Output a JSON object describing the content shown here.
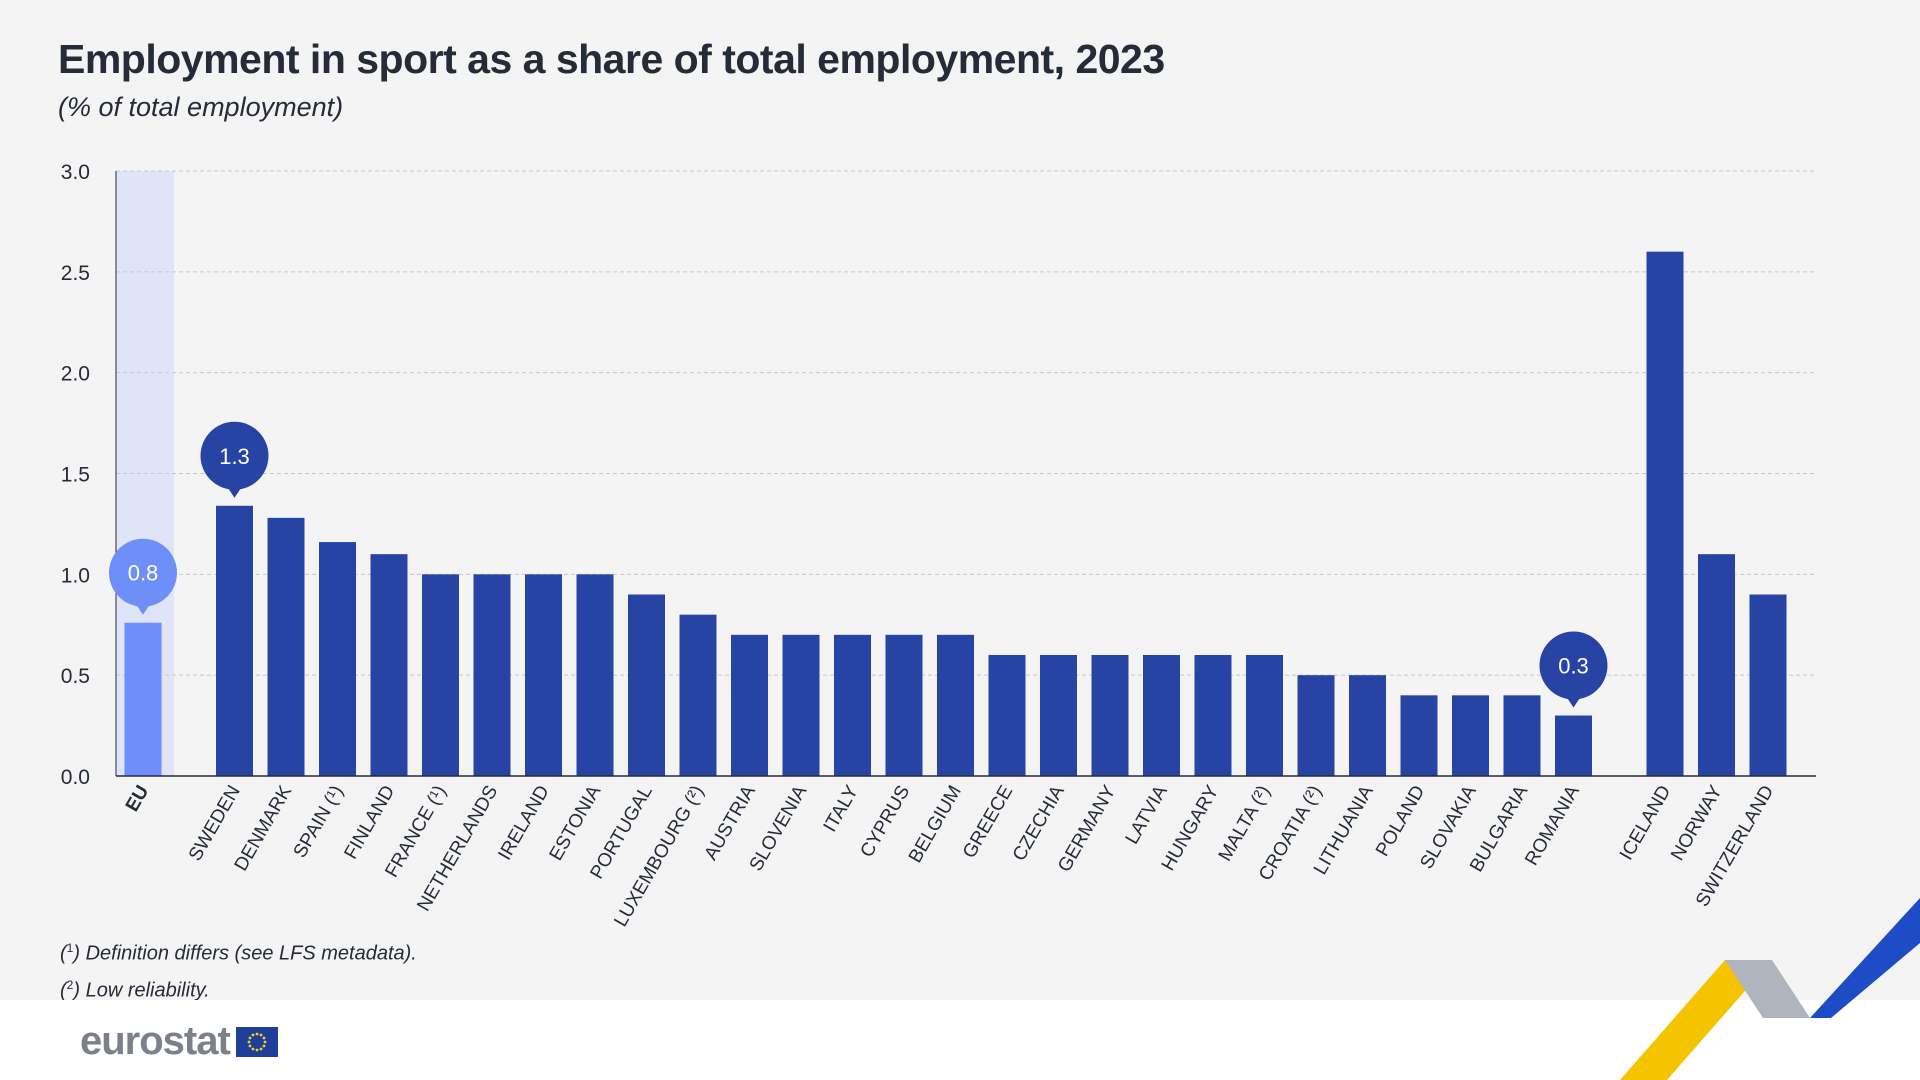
{
  "header": {
    "title": "Employment in sport as a share of total employment, 2023",
    "subtitle": "(% of total employment)"
  },
  "footnotes": {
    "note1_mark": "1",
    "note1_text": "Definition differs (see LFS metadata).",
    "note2_mark": "2",
    "note2_text": "Low reliability."
  },
  "branding": {
    "logo_text": "eurostat"
  },
  "colors": {
    "bar": "#2743a4",
    "eu_bar": "#6e8ff8",
    "eu_highlight": "#dfe4f8",
    "grid": "#c8c8c8",
    "text": "#262b38",
    "callout_dark": "#2743a4",
    "callout_light": "#6e8ff8"
  },
  "chart_data": {
    "type": "bar",
    "title": "Employment in sport as a share of total employment, 2023",
    "ylabel": "(% of total employment)",
    "xlabel": "",
    "ylim": [
      0,
      3.0
    ],
    "yticks": [
      "0.0",
      "0.5",
      "1.0",
      "1.5",
      "2.0",
      "2.5",
      "3.0"
    ],
    "grid": true,
    "categories": [
      "EU",
      "SWEDEN",
      "DENMARK",
      "SPAIN (¹)",
      "FINLAND",
      "FRANCE (¹)",
      "NETHERLANDS",
      "IRELAND",
      "ESTONIA",
      "PORTUGAL",
      "LUXEMBOURG (²)",
      "AUSTRIA",
      "SLOVENIA",
      "ITALY",
      "CYPRUS",
      "BELGIUM",
      "GREECE",
      "CZECHIA",
      "GERMANY",
      "LATVIA",
      "HUNGARY",
      "MALTA (²)",
      "CROATIA (²)",
      "LITHUANIA",
      "POLAND",
      "SLOVAKIA",
      "BULGARIA",
      "ROMANIA",
      "ICELAND",
      "NORWAY",
      "SWITZERLAND"
    ],
    "values": [
      0.76,
      1.34,
      1.28,
      1.16,
      1.1,
      1.0,
      1.0,
      1.0,
      1.0,
      0.9,
      0.8,
      0.7,
      0.7,
      0.7,
      0.7,
      0.7,
      0.6,
      0.6,
      0.6,
      0.6,
      0.6,
      0.6,
      0.5,
      0.5,
      0.4,
      0.4,
      0.4,
      0.3,
      2.6,
      1.1,
      0.9
    ],
    "group_gaps_before": [
      1,
      28
    ],
    "callouts": [
      {
        "category": "EU",
        "label": "0.8"
      },
      {
        "category": "SWEDEN",
        "label": "1.3"
      },
      {
        "category": "ROMANIA",
        "label": "0.3"
      }
    ]
  }
}
